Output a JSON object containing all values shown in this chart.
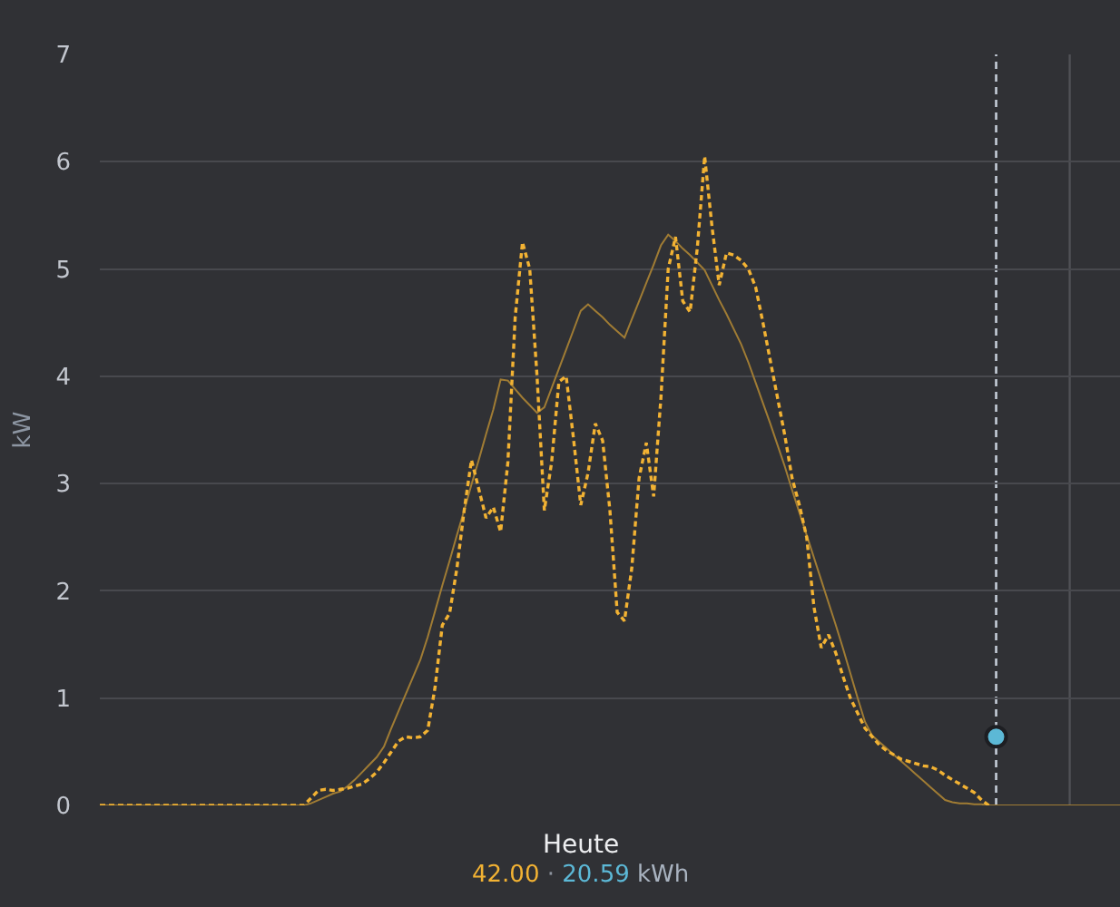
{
  "chart_data": {
    "type": "line",
    "xlabel": "Heute",
    "ylabel": "kW",
    "annotations": [
      "42.00",
      "·",
      "20.59",
      "kWh"
    ],
    "categories": [
      null,
      null,
      null,
      null,
      null,
      null,
      null,
      null,
      null,
      null,
      null,
      null,
      null,
      null,
      null,
      null,
      null,
      null,
      null,
      null,
      null,
      null,
      null,
      null,
      null,
      null,
      null,
      null,
      null,
      null,
      null,
      null,
      null,
      null,
      null,
      null,
      null,
      null,
      null,
      null,
      null,
      null,
      null,
      null,
      null,
      null,
      null,
      null,
      null,
      null,
      null,
      null,
      null,
      null,
      null,
      null,
      null,
      null,
      null,
      null,
      null,
      null,
      null,
      null,
      null,
      null,
      null,
      null,
      null,
      null,
      null,
      null,
      null,
      null,
      null,
      null,
      null,
      null,
      null,
      null,
      null,
      null,
      null,
      null,
      null,
      null,
      null,
      null,
      null,
      null,
      null,
      null,
      null,
      null,
      null,
      null,
      null,
      null,
      null,
      null,
      null,
      null,
      null,
      null,
      null,
      null,
      null,
      null,
      null,
      null,
      null,
      null,
      null,
      null,
      null,
      null,
      null,
      null,
      null,
      null,
      null,
      null,
      null,
      null,
      null,
      null,
      null,
      null,
      null,
      null,
      null,
      null,
      null,
      null,
      null,
      null,
      null,
      null,
      null,
      null,
      null
    ],
    "series": [
      {
        "color": "#f2b233",
        "line_style": "dashed",
        "values": [
          0,
          0,
          0,
          0,
          0,
          0,
          0,
          0,
          0,
          0,
          0,
          0,
          0,
          0,
          0,
          0,
          0,
          0,
          0,
          0,
          0,
          0,
          0,
          0,
          0,
          0,
          0,
          0,
          0,
          0.07,
          0.14,
          0.15,
          0.14,
          0.15,
          0.16,
          0.18,
          0.2,
          0.25,
          0.31,
          0.4,
          0.5,
          0.6,
          0.64,
          0.63,
          0.64,
          0.7,
          1.1,
          1.68,
          1.79,
          2.21,
          2.75,
          3.22,
          2.95,
          2.68,
          2.78,
          2.55,
          3.2,
          4.55,
          5.25,
          5.0,
          4.0,
          2.75,
          3.2,
          3.95,
          4.0,
          3.42,
          2.8,
          3.1,
          3.56,
          3.4,
          2.75,
          1.8,
          1.72,
          2.21,
          3.05,
          3.38,
          2.88,
          3.8,
          5.0,
          5.3,
          4.7,
          4.6,
          5.2,
          6.05,
          5.4,
          4.85,
          5.15,
          5.13,
          5.08,
          5.0,
          4.83,
          4.5,
          4.15,
          3.8,
          3.45,
          3.05,
          2.8,
          2.5,
          1.85,
          1.47,
          1.59,
          1.42,
          1.2,
          1.0,
          0.86,
          0.72,
          0.64,
          0.56,
          0.51,
          0.47,
          0.43,
          0.41,
          0.39,
          0.37,
          0.36,
          0.33,
          0.28,
          0.24,
          0.2,
          0.16,
          0.12,
          0.05,
          0,
          null,
          null,
          null,
          null,
          null,
          null,
          null,
          null,
          null,
          null,
          null,
          null,
          null,
          null,
          null,
          null,
          null,
          null
        ]
      },
      {
        "type": "scatter",
        "color": "#5cb8d6",
        "marker": "circle",
        "values": [
          null,
          null,
          null,
          null,
          null,
          null,
          null,
          null,
          null,
          null,
          null,
          null,
          null,
          null,
          null,
          null,
          null,
          null,
          null,
          null,
          null,
          null,
          null,
          null,
          null,
          null,
          null,
          null,
          null,
          null,
          null,
          null,
          null,
          null,
          null,
          null,
          null,
          null,
          null,
          null,
          null,
          null,
          null,
          null,
          null,
          null,
          null,
          null,
          null,
          null,
          null,
          null,
          null,
          null,
          null,
          null,
          null,
          null,
          null,
          null,
          null,
          null,
          null,
          null,
          null,
          null,
          null,
          null,
          null,
          null,
          null,
          null,
          null,
          null,
          null,
          null,
          null,
          null,
          null,
          null,
          null,
          null,
          null,
          null,
          null,
          null,
          null,
          null,
          null,
          null,
          null,
          null,
          null,
          null,
          null,
          null,
          null,
          null,
          null,
          null,
          null,
          null,
          null,
          null,
          null,
          null,
          null,
          null,
          null,
          null,
          null,
          null,
          null,
          null,
          null,
          null,
          null,
          null,
          null,
          null,
          null,
          null,
          null,
          0.64,
          null,
          null,
          null,
          null,
          null,
          null,
          null,
          null,
          null,
          null,
          null,
          null,
          null,
          null,
          null,
          null,
          null
        ]
      },
      {
        "color": "#a07c34",
        "line_style": "solid",
        "values": [
          0,
          0,
          0,
          0,
          0,
          0,
          0,
          0,
          0,
          0,
          0,
          0,
          0,
          0,
          0,
          0,
          0,
          0,
          0,
          0,
          0,
          0,
          0,
          0,
          0,
          0,
          0,
          0,
          0,
          0.02,
          0.05,
          0.08,
          0.11,
          0.13,
          0.18,
          0.24,
          0.31,
          0.38,
          0.45,
          0.55,
          0.72,
          0.88,
          1.04,
          1.2,
          1.36,
          1.57,
          1.81,
          2.05,
          2.28,
          2.52,
          2.75,
          2.99,
          3.22,
          3.46,
          3.69,
          3.97,
          3.96,
          3.88,
          3.8,
          3.73,
          3.66,
          3.71,
          3.89,
          4.07,
          4.25,
          4.43,
          4.61,
          4.67,
          4.61,
          4.55,
          4.48,
          4.42,
          4.36,
          4.53,
          4.7,
          4.87,
          5.04,
          5.22,
          5.32,
          5.26,
          5.19,
          5.13,
          5.06,
          4.99,
          4.85,
          4.71,
          4.58,
          4.44,
          4.3,
          4.13,
          3.94,
          3.75,
          3.56,
          3.36,
          3.16,
          2.94,
          2.73,
          2.52,
          2.31,
          2.1,
          1.89,
          1.68,
          1.46,
          1.23,
          1.0,
          0.78,
          0.65,
          0.59,
          0.53,
          0.47,
          0.41,
          0.35,
          0.29,
          0.23,
          0.17,
          0.11,
          0.05,
          0.03,
          0.02,
          0.02,
          0.01,
          0.01,
          0,
          0,
          0,
          0,
          0,
          0,
          0,
          0,
          0,
          0,
          0,
          0,
          0,
          0,
          0,
          0,
          0,
          0,
          0
        ]
      }
    ],
    "ylim": [
      0,
      7
    ],
    "yticks": [
      0,
      1,
      2,
      3,
      4,
      5,
      6,
      7
    ],
    "grid": "y",
    "tick_labels": "y"
  }
}
